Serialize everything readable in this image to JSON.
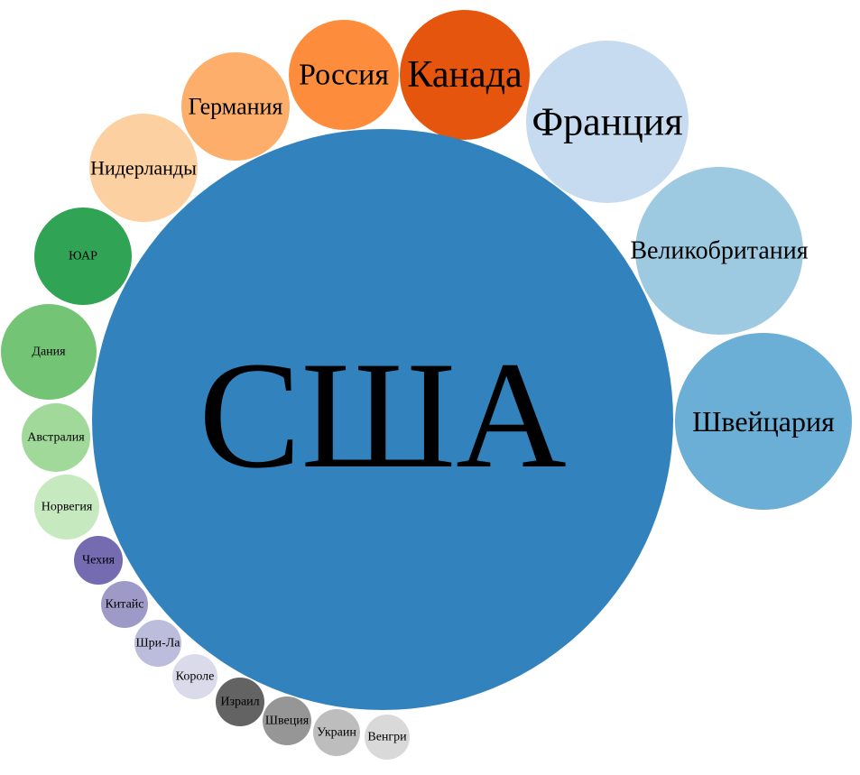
{
  "chart_data": {
    "type": "bubble",
    "center": {
      "label": "США",
      "color": "#3182bd"
    },
    "bubbles": [
      {
        "label": "Канада",
        "color": "#e6550d"
      },
      {
        "label": "Франция",
        "color": "#c6dbef"
      },
      {
        "label": "Великобритания",
        "color": "#9ecae1"
      },
      {
        "label": "Швейцария",
        "color": "#6baed6"
      },
      {
        "label": "Россия",
        "color": "#fd8d3c"
      },
      {
        "label": "Германия",
        "color": "#fdae6b"
      },
      {
        "label": "Нидерланды",
        "color": "#fdd0a2"
      },
      {
        "label": "ЮАР",
        "color": "#31a354"
      },
      {
        "label": "Дания",
        "color": "#74c476"
      },
      {
        "label": "Австралия",
        "color": "#a1d99b"
      },
      {
        "label": "Норвегия",
        "color": "#c7e9c0"
      },
      {
        "label": "Чехия",
        "color": "#756bb1"
      },
      {
        "label": "Китайс",
        "color": "#9e9ac8"
      },
      {
        "label": "Шри-Ла",
        "color": "#bcbddc"
      },
      {
        "label": "Короле",
        "color": "#dadaeb"
      },
      {
        "label": "Израил",
        "color": "#636363"
      },
      {
        "label": "Швеция",
        "color": "#969696"
      },
      {
        "label": "Украин",
        "color": "#bdbdbd"
      },
      {
        "label": "Венгри",
        "color": "#d9d9d9"
      }
    ]
  }
}
